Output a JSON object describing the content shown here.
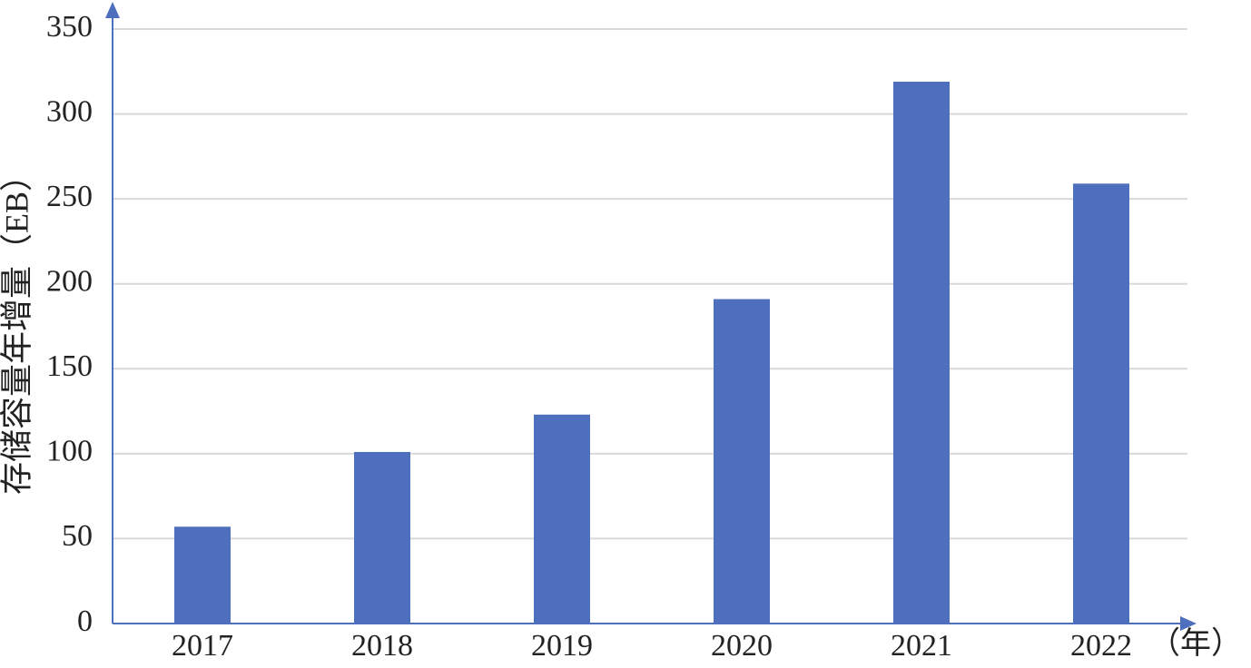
{
  "chart_data": {
    "type": "bar",
    "y_label": "存储容量年增量（EB）",
    "x_label": "（年）",
    "categories": [
      "2017",
      "2018",
      "2019",
      "2020",
      "2021",
      "2022"
    ],
    "values": [
      57,
      101,
      123,
      191,
      319,
      259
    ],
    "color": "#4e6fbe",
    "ylim": [
      0,
      350
    ],
    "yticks": [
      0,
      50,
      100,
      150,
      200,
      250,
      300,
      350
    ],
    "grid": true
  }
}
